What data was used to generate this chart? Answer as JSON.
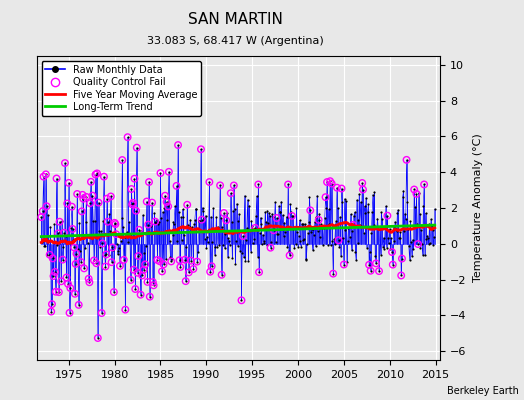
{
  "title": "SAN MARTIN",
  "subtitle": "33.083 S, 68.417 W (Argentina)",
  "credit": "Berkeley Earth",
  "ylabel": "Temperature Anomaly (°C)",
  "xlim": [
    1971.5,
    2015.5
  ],
  "ylim": [
    -6.5,
    10.5
  ],
  "yticks": [
    -6,
    -4,
    -2,
    0,
    2,
    4,
    6,
    8,
    10
  ],
  "xticks": [
    1975,
    1980,
    1985,
    1990,
    1995,
    2000,
    2005,
    2010,
    2015
  ],
  "raw_color": "#0000ff",
  "raw_marker_color": "#000000",
  "qc_fail_color": "#ff00ff",
  "moving_avg_color": "#ff0000",
  "trend_color": "#00cc00",
  "background_color": "#e8e8e8",
  "grid_color": "#ffffff",
  "seed": 42,
  "n_months": 516,
  "start_year": 1972.0,
  "trend_slope": 0.015,
  "trend_intercept": 0.4,
  "moving_avg_window": 60
}
